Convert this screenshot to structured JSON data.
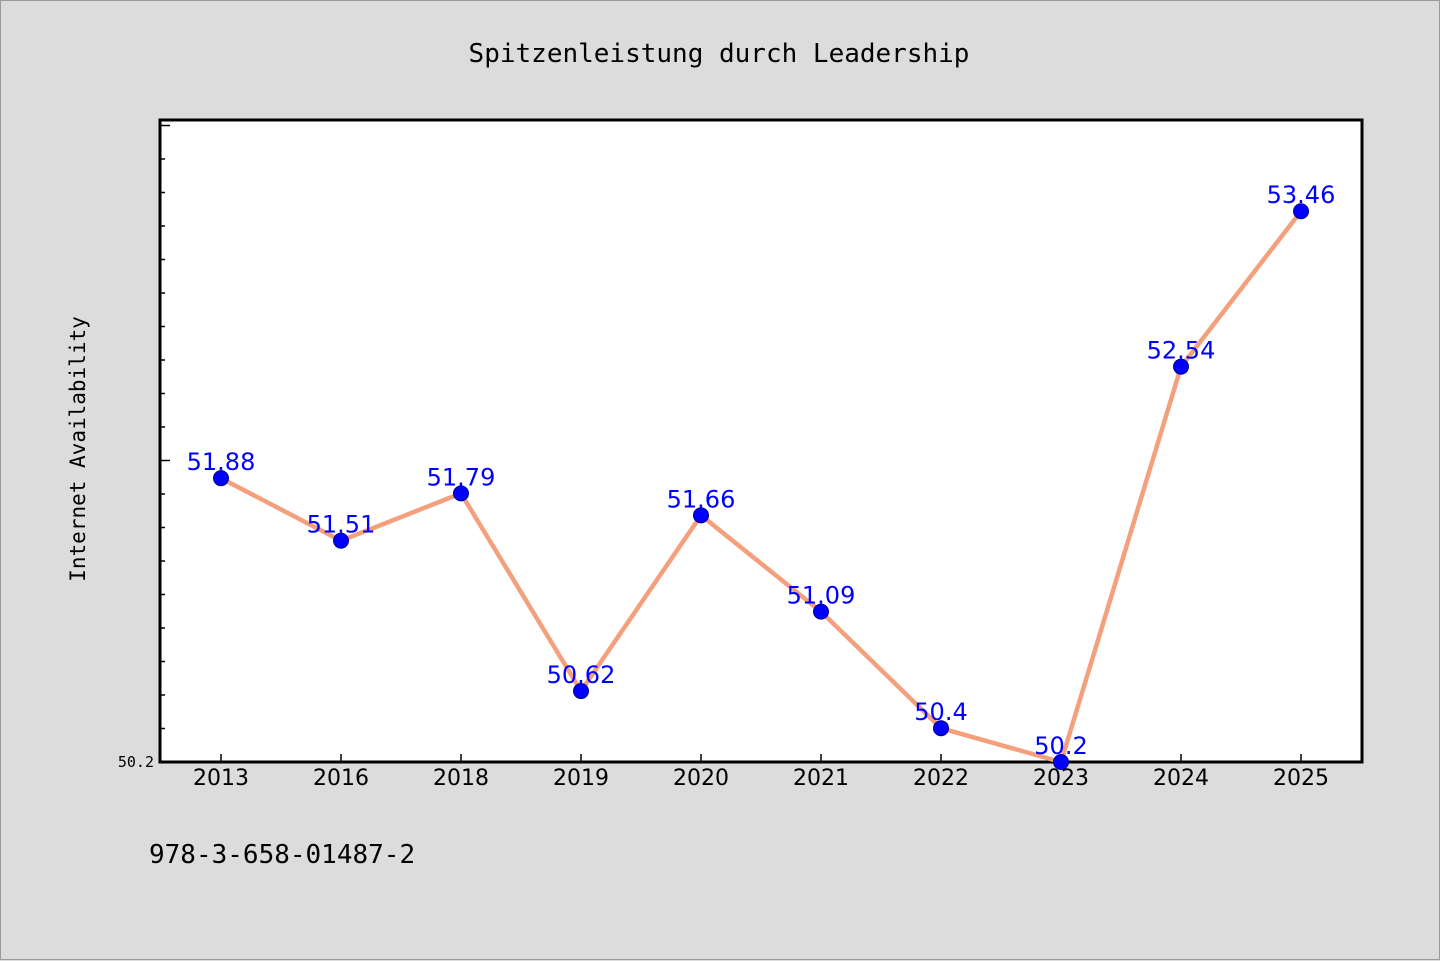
{
  "chart_data": {
    "type": "line",
    "title": "Spitzenleistung durch Leadership",
    "xlabel": "",
    "ylabel": "Internet Availability",
    "categories": [
      "2013",
      "2016",
      "2018",
      "2019",
      "2020",
      "2021",
      "2022",
      "2023",
      "2024",
      "2025"
    ],
    "series": [
      {
        "values": [
          51.88,
          51.51,
          51.79,
          50.62,
          51.66,
          51.09,
          50.4,
          50.2,
          52.54,
          53.46
        ],
        "data_labels": [
          "51.88",
          "51.51",
          "51.79",
          "50.62",
          "51.66",
          "51.09",
          "50.4",
          "50.2",
          "52.54",
          "53.46"
        ]
      }
    ],
    "y_tick_labels": [
      "50.2"
    ],
    "ylim": [
      50.2,
      54.0
    ],
    "grid": false,
    "legend": "none",
    "colors": {
      "line": "#f4a07c",
      "marker": "#0000ff",
      "data_label": "#0000ff",
      "plot_background": "#ffffff",
      "page_background": "#dcdcdc"
    }
  },
  "footer": {
    "isbn": "978-3-658-01487-2"
  }
}
